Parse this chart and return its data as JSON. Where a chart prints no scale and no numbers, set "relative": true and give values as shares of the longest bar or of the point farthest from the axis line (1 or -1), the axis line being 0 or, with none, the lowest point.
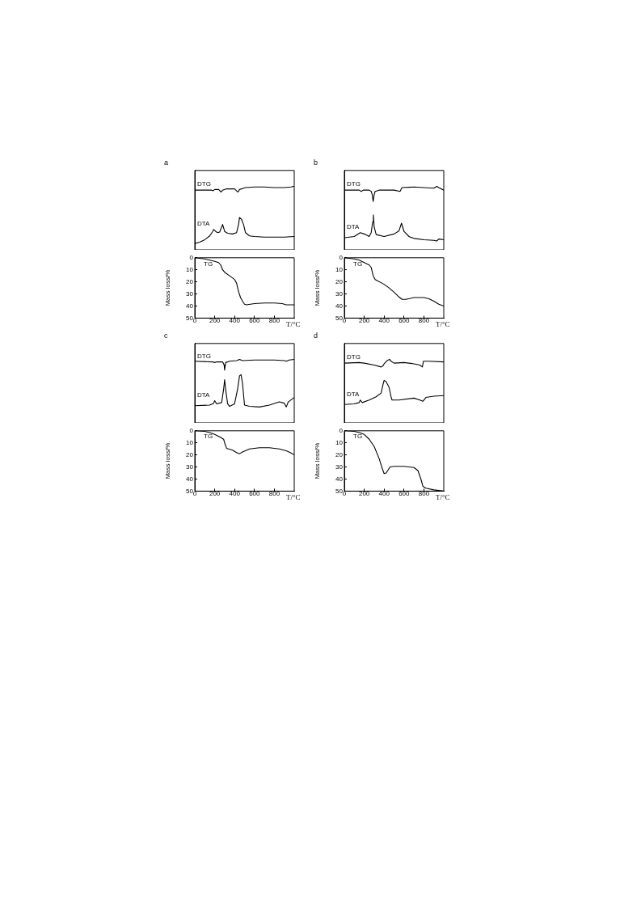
{
  "chart_data": [
    {
      "type": "line",
      "title": "a",
      "relative": true,
      "xlim": [
        0,
        1000
      ],
      "xticks": [
        0,
        200,
        400,
        600,
        800
      ],
      "tick_labels": false,
      "marker": "none",
      "line_style": "solid",
      "series": [
        {
          "name": "DTG",
          "color": "#000000",
          "x": [
            0,
            150,
            170,
            185,
            200,
            240,
            265,
            280,
            320,
            400,
            425,
            435,
            450,
            490,
            510,
            600,
            700,
            800,
            900,
            970,
            990,
            1000
          ],
          "values": [
            0.94,
            0.94,
            0.94,
            0.93,
            0.95,
            0.95,
            0.91,
            0.94,
            0.96,
            0.96,
            0.92,
            0.91,
            0.95,
            0.97,
            0.98,
            0.99,
            0.99,
            0.98,
            0.98,
            0.99,
            1,
            1
          ]
        },
        {
          "name": "DTA",
          "color": "#000000",
          "x": [
            0,
            50,
            100,
            150,
            180,
            190,
            210,
            230,
            250,
            270,
            280,
            300,
            330,
            380,
            420,
            440,
            450,
            470,
            490,
            510,
            550,
            600,
            700,
            800,
            900,
            1000
          ],
          "values": [
            0.1,
            0.12,
            0.16,
            0.22,
            0.29,
            0.32,
            0.29,
            0.27,
            0.28,
            0.36,
            0.4,
            0.29,
            0.26,
            0.25,
            0.27,
            0.4,
            0.51,
            0.48,
            0.4,
            0.27,
            0.22,
            0.21,
            0.2,
            0.2,
            0.2,
            0.21
          ]
        }
      ]
    },
    {
      "type": "line",
      "xlabel": "T/°C",
      "ylabel": "Mass loss/%",
      "xlim": [
        0,
        1000
      ],
      "xticks": [
        0,
        200,
        400,
        600,
        800
      ],
      "ylim": [
        50,
        0
      ],
      "yticks": [
        0,
        10,
        20,
        30,
        40,
        50
      ],
      "marker": "none",
      "line_style": "solid",
      "series": [
        {
          "name": "TG",
          "color": "#000000",
          "x": [
            0,
            50,
            100,
            150,
            200,
            240,
            260,
            280,
            300,
            350,
            400,
            420,
            440,
            460,
            480,
            500,
            520,
            600,
            700,
            800,
            880,
            920,
            1000
          ],
          "values": [
            0,
            0.5,
            1,
            2,
            3,
            4,
            6,
            10,
            12,
            15,
            18,
            21,
            28,
            33,
            36,
            38.5,
            39,
            38,
            37.5,
            37.5,
            38,
            39,
            39
          ]
        }
      ]
    },
    {
      "type": "line",
      "title": "b",
      "relative": true,
      "xlim": [
        0,
        1000
      ],
      "xticks": [
        0,
        200,
        400,
        600,
        800
      ],
      "tick_labels": false,
      "marker": "none",
      "line_style": "solid",
      "series": [
        {
          "name": "DTG",
          "color": "#000000",
          "x": [
            0,
            150,
            170,
            190,
            250,
            270,
            280,
            290,
            300,
            310,
            350,
            500,
            560,
            580,
            700,
            800,
            900,
            930,
            950,
            1000
          ],
          "values": [
            0.94,
            0.94,
            0.92,
            0.94,
            0.94,
            0.92,
            0.87,
            0.76,
            0.87,
            0.92,
            0.94,
            0.94,
            0.92,
            0.98,
            0.99,
            0.98,
            0.97,
            1,
            0.98,
            0.94
          ]
        },
        {
          "name": "DTA",
          "color": "#000000",
          "x": [
            0,
            100,
            160,
            200,
            250,
            270,
            285,
            292,
            300,
            320,
            400,
            500,
            550,
            575,
            600,
            650,
            700,
            800,
            900,
            930,
            950,
            1000
          ],
          "values": [
            0.19,
            0.21,
            0.27,
            0.25,
            0.21,
            0.27,
            0.44,
            0.55,
            0.36,
            0.24,
            0.21,
            0.25,
            0.3,
            0.42,
            0.29,
            0.21,
            0.18,
            0.16,
            0.15,
            0.14,
            0.17,
            0.16
          ]
        }
      ]
    },
    {
      "type": "line",
      "xlabel": "T/°C",
      "ylabel": "Mass loss/%",
      "xlim": [
        0,
        1000
      ],
      "xticks": [
        0,
        200,
        400,
        600,
        800
      ],
      "ylim": [
        50,
        0
      ],
      "yticks": [
        0,
        10,
        20,
        30,
        40,
        50
      ],
      "marker": "none",
      "line_style": "solid",
      "series": [
        {
          "name": "TG",
          "color": "#000000",
          "x": [
            0,
            100,
            150,
            200,
            250,
            270,
            290,
            310,
            400,
            450,
            500,
            550,
            580,
            620,
            700,
            800,
            850,
            900,
            950,
            1000
          ],
          "values": [
            0,
            1,
            2,
            4,
            6,
            8,
            15,
            18,
            22,
            25,
            28.5,
            32.5,
            34.5,
            34.5,
            33,
            33,
            34,
            36,
            38.5,
            40
          ]
        }
      ]
    },
    {
      "type": "line",
      "title": "c",
      "relative": true,
      "xlim": [
        0,
        1000
      ],
      "xticks": [
        0,
        200,
        400,
        600,
        800
      ],
      "tick_labels": false,
      "marker": "none",
      "line_style": "solid",
      "series": [
        {
          "name": "DTG",
          "color": "#000000",
          "x": [
            0,
            180,
            200,
            220,
            280,
            295,
            300,
            310,
            350,
            420,
            450,
            480,
            600,
            800,
            900,
            920,
            950,
            1000
          ],
          "values": [
            0.97,
            0.96,
            0.95,
            0.96,
            0.96,
            0.91,
            0.83,
            0.95,
            0.97,
            0.98,
            1,
            0.98,
            0.99,
            0.99,
            0.98,
            0.97,
            0.99,
            1
          ]
        },
        {
          "name": "DTA",
          "color": "#000000",
          "x": [
            0,
            150,
            190,
            200,
            220,
            270,
            290,
            300,
            310,
            330,
            350,
            400,
            430,
            450,
            465,
            480,
            500,
            550,
            650,
            750,
            850,
            900,
            920,
            940,
            1000
          ],
          "values": [
            0.27,
            0.28,
            0.31,
            0.35,
            0.3,
            0.32,
            0.53,
            0.68,
            0.53,
            0.3,
            0.26,
            0.3,
            0.53,
            0.74,
            0.76,
            0.62,
            0.28,
            0.26,
            0.25,
            0.28,
            0.33,
            0.31,
            0.25,
            0.33,
            0.4
          ]
        }
      ]
    },
    {
      "type": "line",
      "xlabel": "T/°C",
      "ylabel": "Mass loss/%",
      "xlim": [
        0,
        1000
      ],
      "xticks": [
        0,
        200,
        400,
        600,
        800
      ],
      "ylim": [
        50,
        0
      ],
      "yticks": [
        0,
        10,
        20,
        30,
        40,
        50
      ],
      "marker": "none",
      "line_style": "solid",
      "series": [
        {
          "name": "TG",
          "color": "#000000",
          "x": [
            0,
            100,
            150,
            200,
            250,
            290,
            300,
            320,
            380,
            420,
            450,
            480,
            550,
            650,
            750,
            850,
            920,
            960,
            1000
          ],
          "values": [
            0,
            0.5,
            1.5,
            3,
            5,
            7,
            10,
            14.5,
            16,
            18,
            19,
            17.5,
            15,
            14,
            14,
            15,
            16.5,
            18,
            20
          ]
        }
      ]
    },
    {
      "type": "line",
      "title": "d",
      "relative": true,
      "xlim": [
        0,
        1000
      ],
      "xticks": [
        0,
        200,
        400,
        600,
        800
      ],
      "tick_labels": false,
      "marker": "none",
      "line_style": "solid",
      "series": [
        {
          "name": "DTG",
          "color": "#000000",
          "x": [
            0,
            150,
            200,
            300,
            370,
            390,
            400,
            430,
            455,
            470,
            500,
            600,
            700,
            760,
            785,
            795,
            850,
            1000
          ],
          "values": [
            0.94,
            0.95,
            0.94,
            0.91,
            0.88,
            0.9,
            0.93,
            0.98,
            1,
            0.97,
            0.94,
            0.95,
            0.93,
            0.91,
            0.88,
            0.97,
            0.97,
            0.96
          ]
        },
        {
          "name": "DTA",
          "color": "#000000",
          "x": [
            0,
            100,
            150,
            160,
            180,
            250,
            320,
            370,
            390,
            400,
            420,
            450,
            470,
            480,
            550,
            700,
            760,
            790,
            820,
            900,
            1000
          ],
          "values": [
            0.29,
            0.3,
            0.32,
            0.36,
            0.32,
            0.36,
            0.41,
            0.47,
            0.61,
            0.67,
            0.65,
            0.56,
            0.41,
            0.36,
            0.36,
            0.39,
            0.36,
            0.34,
            0.4,
            0.42,
            0.43
          ]
        }
      ]
    },
    {
      "type": "line",
      "xlabel": "T/°C",
      "ylabel": "Mass loss/%",
      "xlim": [
        0,
        1000
      ],
      "xticks": [
        0,
        200,
        400,
        600,
        800
      ],
      "ylim": [
        50,
        0
      ],
      "yticks": [
        0,
        10,
        20,
        30,
        40,
        50
      ],
      "marker": "none",
      "line_style": "solid",
      "series": [
        {
          "name": "TG",
          "color": "#000000",
          "x": [
            0,
            100,
            150,
            200,
            250,
            300,
            350,
            380,
            400,
            420,
            460,
            500,
            600,
            700,
            740,
            770,
            790,
            820,
            900,
            1000
          ],
          "values": [
            0,
            0.5,
            1.5,
            3,
            7,
            13,
            23,
            31,
            35.5,
            35,
            30,
            29.5,
            29.5,
            30.5,
            33,
            40,
            46,
            47.5,
            49,
            50
          ]
        }
      ]
    }
  ]
}
